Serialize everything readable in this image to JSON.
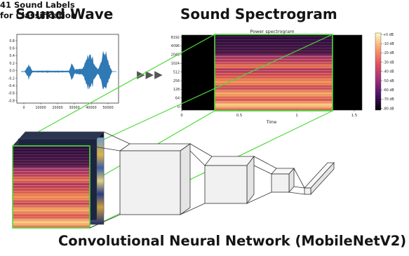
{
  "titles": {
    "sound_wave": "Sound Wave",
    "sound_spectrogram": "Sound Spectrogram",
    "cnn": "Convolutional Neural Network (MobileNetV2)",
    "output_line1": "41 Sound Labels",
    "output_line2": "for Classification"
  },
  "waveform_plot": {
    "y_ticks": [
      "0.8",
      "0.6",
      "0.4",
      "0.2",
      "0.0",
      "-0.2",
      "-0.4",
      "-0.6",
      "-0.8"
    ],
    "x_ticks": [
      "0",
      "10000",
      "20000",
      "30000",
      "40000",
      "50000"
    ],
    "line_color": "#2f79b5"
  },
  "spectrogram_plot": {
    "title": "Power spectrogram",
    "y_ticks": [
      "8192",
      "4096",
      "2048",
      "1024",
      "512",
      "256",
      "128",
      "64",
      "0"
    ],
    "x_ticks": [
      "0",
      "0.5",
      "1",
      "1.5"
    ],
    "xlabel": "Time",
    "colorbar_ticks": [
      "+0 dB",
      "-10 dB",
      "-20 dB",
      "-30 dB",
      "-40 dB",
      "-50 dB",
      "-60 dB",
      "-70 dB",
      "-80 dB"
    ],
    "crop_color": "#4fd93a"
  },
  "arrows": "▶▶▶"
}
